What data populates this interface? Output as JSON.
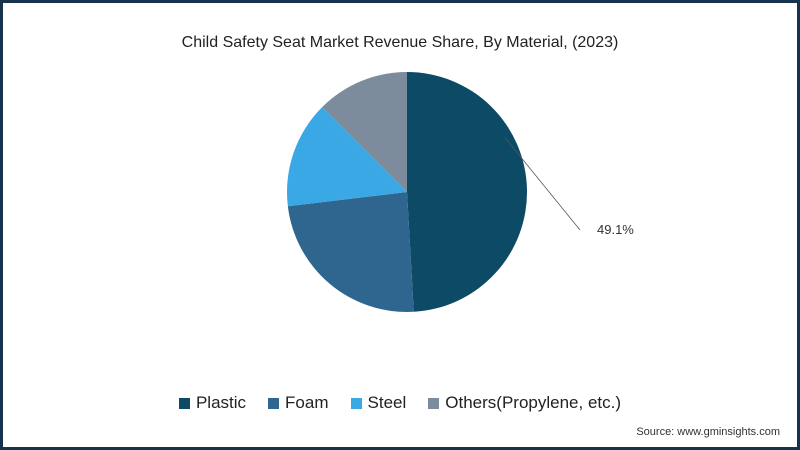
{
  "chart_data": {
    "type": "pie",
    "title": "Child Safety Seat Market Revenue Share, By Material, (2023)",
    "categories": [
      "Plastic",
      "Foam",
      "Steel",
      "Others(Propylene, etc.)"
    ],
    "values": [
      49.1,
      24.0,
      14.4,
      12.5
    ],
    "colors": [
      "#0d4a66",
      "#2e6690",
      "#3aa8e4",
      "#7d8c9c"
    ],
    "data_labels": [
      "49.1%"
    ],
    "legend_position": "bottom",
    "start_angle": "top, clockwise"
  },
  "source": "Source: www.gminsights.com"
}
